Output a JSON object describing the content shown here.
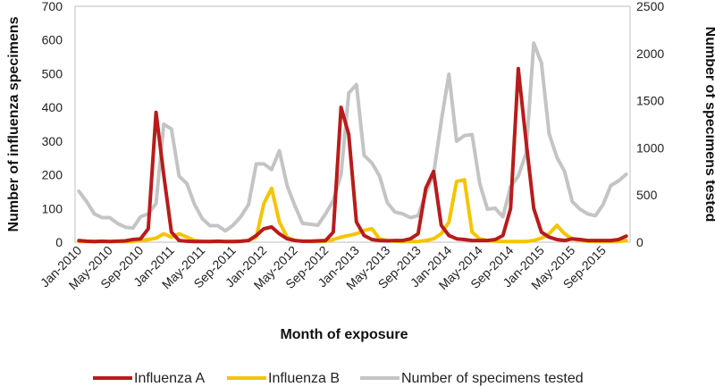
{
  "chart_data": {
    "type": "line",
    "xlabel": "Month of exposure",
    "ylabel_left": "Number of influenza specimens",
    "ylabel_right": "Number of specimens tested",
    "ylim_left": [
      0,
      700
    ],
    "ylim_right": [
      0,
      2500
    ],
    "yticks_left": [
      "0",
      "100",
      "200",
      "300",
      "400",
      "500",
      "600",
      "700"
    ],
    "yticks_right": [
      "0",
      "500",
      "1000",
      "1500",
      "2000",
      "2500"
    ],
    "x_tick_labels": [
      "Jan-2010",
      "May-2010",
      "Sep-2010",
      "Jan-2011",
      "May-2011",
      "Sep-2011",
      "Jan-2012",
      "May-2012",
      "Sep-2012",
      "Jan-2013",
      "May-2013",
      "Sep-2013",
      "Jan-2014",
      "May-2014",
      "Sep-2014",
      "Jan-2015",
      "May-2015",
      "Sep-2015"
    ],
    "months": 72,
    "series": [
      {
        "name": "Influenza A",
        "axis": "left",
        "color": "#b71c1c",
        "values": [
          5,
          3,
          2,
          3,
          2,
          3,
          4,
          8,
          10,
          40,
          385,
          200,
          30,
          5,
          3,
          2,
          2,
          2,
          3,
          2,
          2,
          3,
          5,
          20,
          40,
          45,
          25,
          10,
          5,
          3,
          3,
          4,
          5,
          30,
          400,
          320,
          60,
          20,
          8,
          5,
          4,
          5,
          5,
          10,
          25,
          160,
          210,
          50,
          20,
          10,
          8,
          5,
          5,
          5,
          8,
          20,
          100,
          515,
          300,
          100,
          30,
          15,
          8,
          5,
          10,
          8,
          5,
          5,
          5,
          5,
          8,
          18
        ]
      },
      {
        "name": "Influenza B",
        "axis": "left",
        "color": "#f5c400",
        "values": [
          2,
          2,
          2,
          2,
          2,
          2,
          2,
          2,
          5,
          8,
          12,
          25,
          15,
          25,
          15,
          5,
          3,
          2,
          2,
          2,
          2,
          2,
          5,
          15,
          115,
          160,
          60,
          15,
          5,
          3,
          2,
          2,
          3,
          8,
          15,
          20,
          25,
          35,
          40,
          10,
          5,
          3,
          2,
          2,
          2,
          5,
          10,
          25,
          60,
          180,
          185,
          30,
          10,
          5,
          3,
          2,
          2,
          2,
          2,
          5,
          12,
          25,
          50,
          25,
          10,
          5,
          3,
          2,
          2,
          2,
          2,
          5
        ]
      },
      {
        "name": "Number of specimens tested",
        "axis": "right",
        "color": "#c4c4c4",
        "values": [
          540,
          430,
          300,
          260,
          260,
          200,
          160,
          150,
          270,
          300,
          410,
          1250,
          1200,
          700,
          620,
          400,
          250,
          175,
          175,
          120,
          180,
          270,
          400,
          830,
          830,
          770,
          970,
          600,
          390,
          200,
          190,
          180,
          300,
          440,
          720,
          1580,
          1670,
          920,
          840,
          700,
          420,
          320,
          300,
          260,
          280,
          520,
          720,
          1280,
          1780,
          1070,
          1130,
          1140,
          620,
          350,
          360,
          270,
          590,
          700,
          940,
          2110,
          1900,
          1150,
          900,
          750,
          430,
          350,
          300,
          280,
          400,
          600,
          650,
          720
        ]
      }
    ],
    "legend": [
      "Influenza A",
      "Influenza B",
      "Number of specimens tested"
    ],
    "legend_position": "bottom",
    "grid": false
  }
}
